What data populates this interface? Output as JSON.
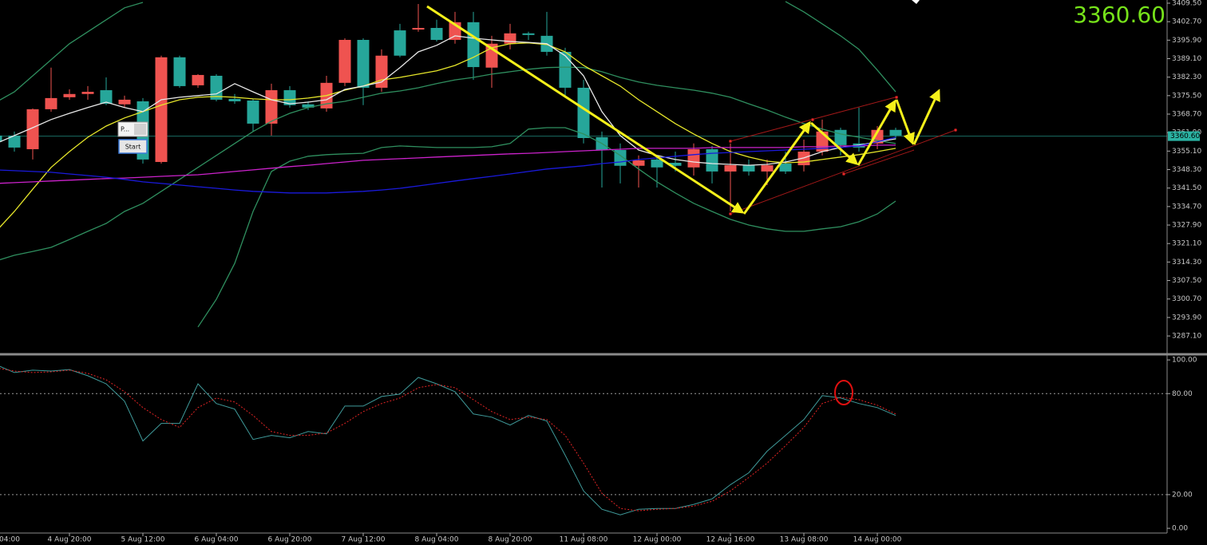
{
  "chart_data": [
    {
      "type": "candlestick",
      "categories": [
        "04:00",
        null,
        null,
        null,
        "4 Aug 20:00",
        null,
        null,
        null,
        "5 Aug 12:00",
        null,
        null,
        null,
        "6 Aug 04:00",
        null,
        null,
        null,
        "6 Aug 20:00",
        null,
        null,
        null,
        "7 Aug 12:00",
        null,
        null,
        null,
        "8 Aug 04:00",
        null,
        null,
        null,
        "8 Aug 20:00",
        null,
        null,
        null,
        "11 Aug 08:00",
        null,
        null,
        null,
        "12 Aug 00:00",
        null,
        null,
        null,
        "12 Aug 16:00",
        null,
        null,
        null,
        "13 Aug 08:00",
        null,
        null,
        null,
        "14 Aug 00:00",
        null
      ],
      "open": [
        3358.5,
        3356.4,
        3370.5,
        3374.6,
        3376.1,
        3376.9,
        3372.5,
        3374.0,
        3352.0,
        3389.6,
        3379.0,
        3383.1,
        3374.0,
        3373.4,
        3365.2,
        3377.5,
        3372.0,
        3371.1,
        3380.2,
        3396.0,
        3378.4,
        3390.2,
        3390.2,
        3400.4,
        3396.0,
        3402.5,
        3386.0,
        3394.6,
        3398.4,
        3397.8,
        3391.6,
        3378.4,
        3359.9,
        3355.5,
        3349.7,
        3351.7,
        3349.1,
        3349.7,
        3355.8,
        3347.6,
        3349.9,
        3347.6,
        3349.9,
        3347.6,
        3354.9,
        3362.3,
        3357.3,
        3356.4,
        3362.9,
        3360.8
      ],
      "high": [
        3362.3,
        3362.3,
        3370.8,
        3385.8,
        3377.8,
        3379.0,
        3382.2,
        3375.5,
        3374.6,
        3390.2,
        3390.2,
        3383.4,
        3383.4,
        3376.1,
        3374.3,
        3379.9,
        3379.0,
        3373.4,
        3382.8,
        3396.6,
        3396.6,
        3392.5,
        3401.9,
        3409.2,
        3403.4,
        3406.3,
        3406.3,
        3397.5,
        3401.9,
        3399.0,
        3406.3,
        3393.1,
        3381.3,
        3362.3,
        3357.9,
        3353.5,
        3353.5,
        3354.9,
        3357.9,
        3357.0,
        3357.9,
        3352.0,
        3352.0,
        3354.9,
        3359.3,
        3366.7,
        3363.7,
        3371.1,
        3364.3,
        3363.7
      ],
      "low": [
        3356.4,
        3354.9,
        3352.0,
        3369.6,
        3374.0,
        3374.0,
        3372.0,
        3371.1,
        3350.5,
        3350.5,
        3378.4,
        3378.4,
        3373.4,
        3372.5,
        3362.3,
        3360.8,
        3371.1,
        3370.2,
        3369.6,
        3379.0,
        3372.0,
        3376.9,
        3389.6,
        3399.0,
        3395.4,
        3394.6,
        3381.3,
        3378.4,
        3392.5,
        3396.0,
        3390.2,
        3375.5,
        3357.9,
        3341.7,
        3343.2,
        3341.7,
        3341.7,
        3347.6,
        3346.1,
        3343.2,
        3332.9,
        3346.1,
        3342.6,
        3346.7,
        3347.6,
        3353.5,
        3353.5,
        3354.9,
        3355.8,
        3359.3
      ],
      "close": [
        3360.8,
        3360.8,
        3355.8,
        3370.5,
        3374.9,
        3376.1,
        3377.5,
        3372.3,
        3373.4,
        3351.1,
        3389.6,
        3379.3,
        3382.8,
        3374.3,
        3373.7,
        3365.2,
        3377.5,
        3372.3,
        3370.8,
        3380.2,
        3396.0,
        3378.4,
        3399.5,
        3399.8,
        3400.4,
        3396.0,
        3402.5,
        3385.8,
        3394.6,
        3398.4,
        3397.5,
        3391.6,
        3378.4,
        3360.2,
        3355.5,
        3349.7,
        3352.0,
        3350.8,
        3349.1,
        3355.8,
        3347.6,
        3349.9,
        3347.6,
        3350.5,
        3349.9,
        3354.9,
        3362.9,
        3357.9,
        3357.9,
        3362.9
      ],
      "up_color": "#26a69a",
      "down_color": "#ef5350",
      "series": [
        {
          "color": "#2f8f5f",
          "values": [
            3373.1,
            3376.9,
            3382.8,
            3388.7,
            3394.6,
            3399.0,
            3403.4,
            3407.8,
            3409.8,
            null,
            null,
            null,
            null,
            null,
            null,
            null,
            null,
            null,
            null,
            null,
            null,
            null,
            null,
            null,
            null,
            null,
            null,
            null,
            null,
            null,
            null,
            null,
            null,
            null,
            null,
            null,
            null,
            null,
            null,
            null,
            null,
            null,
            null,
            3410.1,
            3406.3,
            3401.9,
            3397.5,
            3392.5,
            3384.9,
            3376.9
          ]
        },
        {
          "color": "#2f8f5f",
          "values": [
            3314.7,
            3316.8,
            3318.2,
            3319.7,
            3322.6,
            3325.6,
            3328.5,
            3332.9,
            3335.9,
            3340.3,
            3344.7,
            3349.1,
            3353.5,
            3357.9,
            3362.3,
            3366.1,
            3369.0,
            3371.1,
            3372.5,
            3373.4,
            3374.9,
            3376.4,
            3377.2,
            3378.4,
            3379.9,
            3381.3,
            3382.2,
            3383.4,
            3384.3,
            3385.2,
            3385.8,
            3386.0,
            3385.8,
            3384.3,
            3382.2,
            3380.5,
            3379.3,
            3378.4,
            3377.5,
            3376.4,
            3374.9,
            3372.5,
            3370.2,
            3367.6,
            3365.2,
            3363.2,
            3361.4,
            3360.2,
            3359.0,
            3357.9
          ]
        },
        {
          "color": "#2f8f5f",
          "values": [
            null,
            null,
            null,
            null,
            null,
            null,
            null,
            null,
            null,
            null,
            null,
            3290.4,
            3300.6,
            3313.8,
            3332.9,
            3347.6,
            3351.4,
            3353.2,
            3353.8,
            3354.1,
            3354.3,
            3356.4,
            3357.0,
            3356.7,
            3356.4,
            3356.4,
            3356.4,
            3356.7,
            3357.9,
            3363.2,
            3363.7,
            3363.7,
            3361.4,
            3357.9,
            3353.5,
            3348.5,
            3343.8,
            3339.7,
            3335.9,
            3332.9,
            3330.0,
            3327.9,
            3326.5,
            3325.6,
            3325.6,
            3326.5,
            3327.3,
            3329.1,
            3332.0,
            3336.7
          ]
        },
        {
          "color": "#e6e62a",
          "values": [
            3325.6,
            3332.9,
            3341.1,
            3349.1,
            3354.9,
            3360.2,
            3364.3,
            3367.3,
            3369.6,
            3372.0,
            3374.0,
            3374.9,
            3375.2,
            3374.9,
            3374.3,
            3374.0,
            3374.0,
            3374.6,
            3375.5,
            3377.5,
            3379.0,
            3381.3,
            3382.2,
            3383.4,
            3384.6,
            3386.6,
            3389.6,
            3393.1,
            3394.6,
            3394.9,
            3394.3,
            3391.6,
            3386.6,
            3382.8,
            3379.0,
            3374.0,
            3369.6,
            3365.2,
            3361.4,
            3357.9,
            3354.9,
            3352.9,
            3351.4,
            3350.8,
            3351.1,
            3352.0,
            3352.9,
            3353.8,
            3354.9,
            3356.1
          ]
        },
        {
          "color": "#e8e8e8",
          "values": [
            3357.9,
            3360.8,
            3363.7,
            3366.7,
            3369.0,
            3371.1,
            3373.1,
            3371.1,
            3369.6,
            3374.0,
            3374.9,
            3375.5,
            3376.1,
            3379.9,
            3376.9,
            3374.0,
            3372.5,
            3373.1,
            3374.0,
            3377.8,
            3379.0,
            3380.5,
            3385.8,
            3391.6,
            3394.0,
            3397.5,
            3396.6,
            3396.0,
            3395.4,
            3395.1,
            3394.6,
            3390.2,
            3382.8,
            3369.6,
            3360.8,
            3355.5,
            3353.5,
            3352.0,
            3351.1,
            3350.5,
            3350.2,
            3349.9,
            3350.2,
            3351.1,
            3352.6,
            3354.9,
            3356.4,
            3357.3,
            3358.5,
            3359.6
          ]
        },
        {
          "color": "#cc22cc",
          "values": [
            3343.2,
            3343.5,
            3343.8,
            3344.1,
            3344.4,
            3344.7,
            3345.0,
            3345.2,
            3345.5,
            3345.8,
            3346.1,
            3346.4,
            3347.0,
            3347.6,
            3348.2,
            3348.8,
            3349.4,
            3349.9,
            3350.5,
            3351.1,
            3351.7,
            3352.0,
            3352.3,
            3352.6,
            3352.9,
            3353.2,
            3353.5,
            3353.8,
            3354.1,
            3354.3,
            3354.6,
            3354.9,
            3355.2,
            3355.5,
            3355.8,
            3356.1,
            3356.1,
            3356.1,
            3356.1,
            3356.4,
            3356.4,
            3356.4,
            3356.4,
            3356.4,
            3356.7,
            3356.7,
            3357.0,
            3357.0,
            3357.3,
            3357.3
          ]
        },
        {
          "color": "#1a1adc",
          "values": [
            3348.2,
            3347.9,
            3347.6,
            3347.3,
            3346.7,
            3346.1,
            3345.5,
            3344.7,
            3343.8,
            3343.2,
            3342.6,
            3342.0,
            3341.4,
            3340.8,
            3340.3,
            3340.0,
            3339.7,
            3339.7,
            3339.7,
            3340.0,
            3340.3,
            3340.8,
            3341.4,
            3342.3,
            3343.2,
            3344.1,
            3345.0,
            3345.8,
            3346.7,
            3347.6,
            3348.5,
            3349.1,
            3349.7,
            3350.5,
            3351.1,
            3352.0,
            3352.6,
            3353.2,
            3353.8,
            3354.3,
            3354.6,
            3354.9,
            3355.2,
            3355.5,
            3355.8,
            3356.1,
            3356.4,
            3357.0,
            3358.5,
            3360.2
          ]
        }
      ],
      "ylim": [
        3280.66,
        3410.67
      ],
      "yticks": [
        {
          "value": 3409.5,
          "label": "3409.50"
        },
        {
          "value": 3402.7,
          "label": "3402.70"
        },
        {
          "value": 3395.9,
          "label": "3395.90"
        },
        {
          "value": 3389.1,
          "label": "3389.10"
        },
        {
          "value": 3382.3,
          "label": "3382.30"
        },
        {
          "value": 3375.5,
          "label": "3375.50"
        },
        {
          "value": 3368.7,
          "label": "3368.70"
        },
        {
          "value": 3361.9,
          "label": "3361.90"
        },
        {
          "value": 3355.1,
          "label": "3355.10"
        },
        {
          "value": 3348.3,
          "label": "3348.30"
        },
        {
          "value": 3341.5,
          "label": "3341.50"
        },
        {
          "value": 3334.7,
          "label": "3334.70"
        },
        {
          "value": 3327.9,
          "label": "3327.90"
        },
        {
          "value": 3321.1,
          "label": "3321.10"
        },
        {
          "value": 3314.3,
          "label": "3314.30"
        },
        {
          "value": 3307.5,
          "label": "3307.50"
        },
        {
          "value": 3300.7,
          "label": "3300.70"
        },
        {
          "value": 3293.9,
          "label": "3293.90"
        },
        {
          "value": 3287.1,
          "label": "3287.10"
        }
      ],
      "grid": false,
      "current_price": {
        "value": 3360.6,
        "label": "3360.60"
      },
      "current_price_color": "#2bb3a3"
    },
    {
      "type": "line",
      "series": [
        {
          "color": "#3f9a9a",
          "style": "solid",
          "values": [
            97.2,
            92.5,
            93.9,
            93.4,
            94.3,
            90.6,
            85.8,
            75.5,
            51.9,
            62.3,
            62.3,
            85.8,
            74.1,
            70.8,
            52.8,
            55.2,
            53.8,
            57.5,
            56.1,
            72.6,
            72.6,
            78.3,
            79.7,
            89.6,
            85.8,
            81.1,
            67.9,
            66.0,
            61.3,
            67.0,
            63.7,
            43.4,
            22.2,
            11.3,
            8.0,
            11.3,
            11.8,
            11.8,
            14.2,
            17.5,
            25.9,
            33.0,
            45.8,
            55.2,
            64.6,
            78.8,
            77.4,
            74.1,
            71.7,
            67.0
          ]
        },
        {
          "color": "#e02424",
          "style": "dotted",
          "values": [
            95.3,
            93.4,
            92.5,
            92.9,
            93.9,
            92.0,
            88.2,
            81.1,
            71.7,
            64.6,
            59.9,
            71.7,
            77.4,
            75.0,
            67.0,
            57.5,
            55.2,
            55.2,
            56.6,
            62.3,
            69.3,
            74.1,
            77.4,
            83.5,
            85.4,
            83.5,
            76.4,
            69.3,
            64.6,
            66.0,
            64.6,
            55.2,
            38.7,
            20.8,
            11.8,
            10.4,
            11.3,
            11.8,
            13.2,
            16.0,
            22.2,
            30.2,
            38.7,
            49.1,
            59.9,
            74.1,
            77.8,
            76.4,
            73.1,
            67.9
          ]
        }
      ],
      "ylim": [
        -2.8,
        102.4
      ],
      "yticks": [
        {
          "value": 100,
          "label": "100.00"
        },
        {
          "value": 80,
          "label": "80.00"
        },
        {
          "value": 20,
          "label": "20.00"
        },
        {
          "value": 0,
          "label": "0.00"
        }
      ],
      "levels": [
        80,
        20
      ]
    }
  ],
  "widget": {
    "field": "P...",
    "button": "Start"
  }
}
